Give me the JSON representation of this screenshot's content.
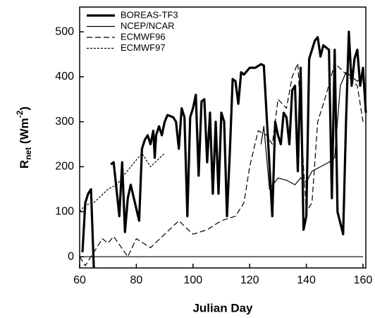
{
  "chart_data": {
    "type": "line",
    "xlabel": "Julian Day",
    "ylabel": {
      "main": "R",
      "sub": "net",
      "mid": " (Wm",
      "sup": "-2",
      "end": ")"
    },
    "xlim": [
      60,
      161
    ],
    "ylim": [
      -25,
      555
    ],
    "xticks": [
      60,
      80,
      100,
      120,
      140,
      160
    ],
    "yticks": [
      0,
      100,
      200,
      300,
      400,
      500
    ],
    "hline": 0,
    "legend": "upper-left",
    "series": [
      {
        "name": "BOREAS-TF3",
        "color": "#000000",
        "width": "thick",
        "dash": "solid",
        "x": [
          61,
          62,
          63,
          64,
          65,
          66,
          71,
          72,
          73,
          74,
          75,
          76,
          77,
          78,
          81,
          82,
          83,
          84,
          85,
          86,
          86.5,
          87,
          88,
          89,
          90,
          91,
          93,
          94,
          95,
          96,
          97,
          98,
          99,
          100,
          101,
          102,
          103,
          104,
          105,
          106,
          107,
          108,
          109,
          110,
          111,
          112,
          113,
          114,
          115,
          116,
          117,
          118,
          120,
          122,
          124,
          125,
          128,
          129,
          130,
          131,
          132,
          133,
          134,
          135,
          136,
          137,
          138,
          139,
          140,
          141,
          142,
          143,
          144,
          145,
          146,
          148,
          149,
          150,
          151,
          153,
          154,
          155,
          156,
          157,
          158,
          159,
          160,
          161
        ],
        "values": [
          10,
          120,
          140,
          150,
          -25,
          null,
          205,
          210,
          150,
          90,
          210,
          55,
          130,
          160,
          80,
          240,
          260,
          270,
          250,
          280,
          220,
          270,
          290,
          270,
          300,
          315,
          310,
          300,
          240,
          330,
          310,
          90,
          310,
          330,
          360,
          180,
          345,
          350,
          210,
          320,
          140,
          300,
          140,
          320,
          300,
          90,
          230,
          395,
          390,
          340,
          410,
          405,
          420,
          420,
          428,
          425,
          90,
          300,
          270,
          250,
          320,
          310,
          250,
          370,
          380,
          190,
          420,
          60,
          90,
          440,
          460,
          480,
          488,
          445,
          470,
          460,
          130,
          460,
          100,
          50,
          300,
          500,
          380,
          440,
          460,
          380,
          420,
          320
        ]
      },
      {
        "name": "NCEP/NCAR",
        "color": "#000000",
        "width": "thin",
        "dash": "solid",
        "x": [
          124,
          125,
          127,
          130,
          133,
          136,
          138,
          140,
          142,
          145,
          148,
          150,
          152,
          154,
          156,
          158,
          160
        ],
        "values": [
          250,
          290,
          150,
          175,
          170,
          160,
          175,
          165,
          190,
          200,
          210,
          220,
          380,
          410,
          400,
          390,
          400
        ]
      },
      {
        "name": "ECMWF96",
        "color": "#000000",
        "width": "thin",
        "dash": "dashed",
        "x": [
          60,
          62,
          68,
          70,
          72,
          77,
          80,
          85,
          90,
          95,
          100,
          105,
          110,
          115,
          118,
          120,
          123,
          126,
          128,
          130,
          133,
          135,
          137,
          139,
          140,
          142,
          144,
          147,
          150,
          155,
          158,
          160
        ],
        "values": [
          0,
          -20,
          40,
          30,
          45,
          0,
          40,
          20,
          50,
          80,
          50,
          60,
          80,
          90,
          120,
          200,
          280,
          270,
          250,
          350,
          330,
          400,
          430,
          200,
          100,
          120,
          300,
          360,
          430,
          400,
          380,
          300
        ]
      },
      {
        "name": "ECMWF97",
        "color": "#000000",
        "width": "thin",
        "dash": "dotted",
        "x": [
          60,
          62,
          65,
          70,
          73,
          78,
          82,
          85,
          90
        ],
        "values": [
          100,
          115,
          120,
          150,
          160,
          200,
          230,
          200,
          230
        ]
      }
    ]
  }
}
